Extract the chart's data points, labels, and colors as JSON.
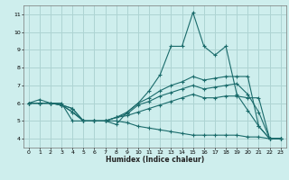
{
  "title": "",
  "xlabel": "Humidex (Indice chaleur)",
  "bg_color": "#ceeeed",
  "grid_color": "#aed4d3",
  "line_color": "#1a6b6b",
  "xlim": [
    -0.5,
    23.5
  ],
  "ylim": [
    3.5,
    11.5
  ],
  "xticks": [
    0,
    1,
    2,
    3,
    4,
    5,
    6,
    7,
    8,
    9,
    10,
    11,
    12,
    13,
    14,
    15,
    16,
    17,
    18,
    19,
    20,
    21,
    22,
    23
  ],
  "yticks": [
    4,
    5,
    6,
    7,
    8,
    9,
    10,
    11
  ],
  "lines": [
    [
      6.0,
      6.2,
      6.0,
      6.0,
      5.0,
      5.0,
      5.0,
      5.0,
      4.8,
      5.5,
      6.0,
      6.7,
      7.6,
      9.2,
      9.2,
      11.1,
      9.2,
      8.7,
      9.2,
      6.5,
      5.6,
      4.7,
      4.0,
      4.0
    ],
    [
      6.0,
      6.0,
      6.0,
      5.9,
      5.5,
      5.0,
      5.0,
      5.0,
      5.2,
      5.5,
      6.0,
      6.3,
      6.7,
      7.0,
      7.2,
      7.5,
      7.3,
      7.4,
      7.5,
      7.5,
      7.5,
      4.7,
      4.0,
      4.0
    ],
    [
      6.0,
      6.0,
      6.0,
      5.9,
      5.5,
      5.0,
      5.0,
      5.0,
      5.2,
      5.4,
      5.9,
      6.1,
      6.4,
      6.6,
      6.8,
      7.0,
      6.8,
      6.9,
      7.0,
      7.1,
      6.5,
      5.5,
      4.0,
      4.0
    ],
    [
      6.0,
      6.0,
      6.0,
      5.9,
      5.7,
      5.0,
      5.0,
      5.0,
      5.2,
      5.3,
      5.5,
      5.7,
      5.9,
      6.1,
      6.3,
      6.5,
      6.3,
      6.3,
      6.4,
      6.4,
      6.3,
      6.3,
      4.0,
      4.0
    ],
    [
      6.0,
      6.0,
      6.0,
      5.9,
      5.7,
      5.0,
      5.0,
      5.0,
      5.0,
      4.9,
      4.7,
      4.6,
      4.5,
      4.4,
      4.3,
      4.2,
      4.2,
      4.2,
      4.2,
      4.2,
      4.1,
      4.1,
      4.0,
      4.0
    ]
  ]
}
